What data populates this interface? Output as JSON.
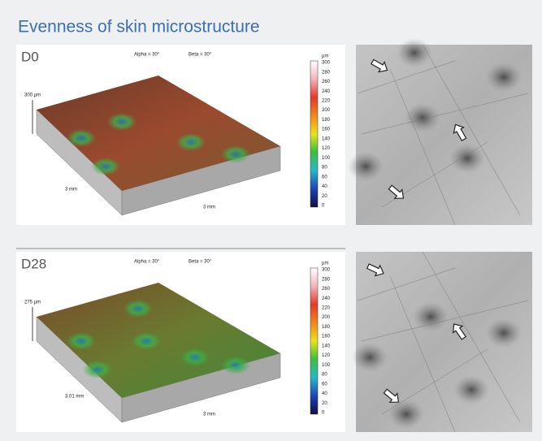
{
  "header": {
    "title": "Evenness of skin microstructure"
  },
  "panels": [
    {
      "label": "D0",
      "alpha": "Alpha = 30°",
      "beta": "Beta = 30°",
      "height": "300 µm",
      "x_dim": "3 mm",
      "y_dim": "3 mm",
      "colorbar": {
        "unit": "µm",
        "ticks": [
          "300",
          "280",
          "260",
          "240",
          "220",
          "200",
          "180",
          "160",
          "140",
          "120",
          "100",
          "80",
          "60",
          "40",
          "20",
          "0"
        ]
      }
    },
    {
      "label": "D28",
      "alpha": "Alpha = 30°",
      "beta": "Beta = 30°",
      "height": "275 µm",
      "x_dim": "3.01 mm",
      "y_dim": "3 mm",
      "colorbar": {
        "unit": "µm",
        "ticks": [
          "300",
          "280",
          "260",
          "240",
          "220",
          "200",
          "180",
          "160",
          "140",
          "120",
          "100",
          "80",
          "60",
          "40",
          "20",
          "0"
        ]
      }
    }
  ]
}
